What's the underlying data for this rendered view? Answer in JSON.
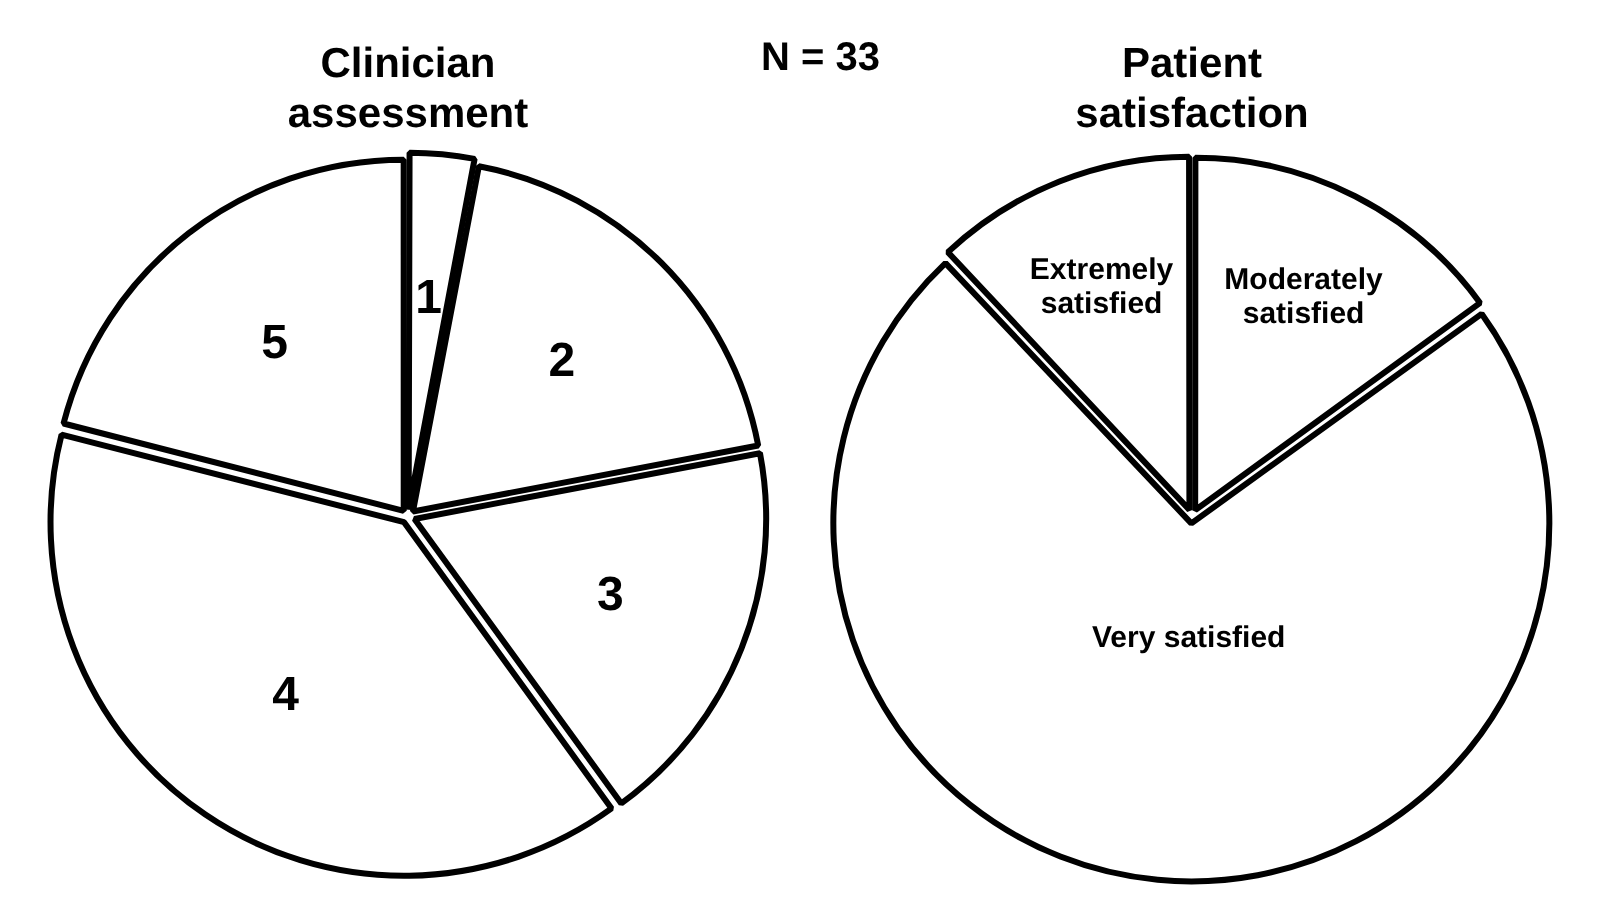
{
  "chart_data": [
    {
      "type": "pie",
      "title": "Clinician\nassessment",
      "categories": [
        "1",
        "2",
        "3",
        "4",
        "5"
      ],
      "values": [
        3,
        19,
        18,
        39,
        21
      ],
      "colors": [
        "#ffffff",
        "#ffffff",
        "#ffffff",
        "#ffffff",
        "#ffffff"
      ],
      "legend": false,
      "annotations": [
        "N = 33"
      ]
    },
    {
      "type": "pie",
      "title": "Patient\nsatisfaction",
      "categories": [
        "Moderately satisfied",
        "Very satisfied",
        "Extremely satisfied"
      ],
      "values": [
        15,
        73,
        12
      ],
      "colors": [
        "#ffffff",
        "#ffffff",
        "#ffffff"
      ],
      "legend": false
    }
  ]
}
